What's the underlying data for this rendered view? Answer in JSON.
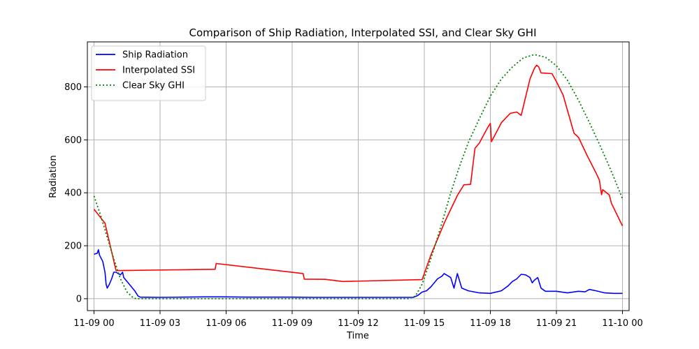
{
  "chart_data": {
    "type": "line",
    "title": "Comparison of Ship Radiation, Interpolated SSI, and Clear Sky GHI",
    "xlabel": "Time",
    "ylabel": "Radiation",
    "xlim_hours": [
      -0.3,
      24.3
    ],
    "ylim": [
      -45,
      970
    ],
    "x_ticks": [
      {
        "hour": 0,
        "label": "11-09 00"
      },
      {
        "hour": 3,
        "label": "11-09 03"
      },
      {
        "hour": 6,
        "label": "11-09 06"
      },
      {
        "hour": 9,
        "label": "11-09 09"
      },
      {
        "hour": 12,
        "label": "11-09 12"
      },
      {
        "hour": 15,
        "label": "11-09 15"
      },
      {
        "hour": 18,
        "label": "11-09 18"
      },
      {
        "hour": 21,
        "label": "11-09 21"
      },
      {
        "hour": 24,
        "label": "11-10 00"
      }
    ],
    "y_ticks": [
      0,
      200,
      400,
      600,
      800
    ],
    "grid": true,
    "legend_position": "upper-left",
    "series": [
      {
        "name": "Ship Radiation",
        "color": "#0000ff",
        "style": "solid",
        "points": [
          [
            0,
            168
          ],
          [
            0.15,
            172
          ],
          [
            0.2,
            185
          ],
          [
            0.25,
            165
          ],
          [
            0.4,
            140
          ],
          [
            0.5,
            100
          ],
          [
            0.55,
            55
          ],
          [
            0.6,
            40
          ],
          [
            0.7,
            55
          ],
          [
            0.8,
            75
          ],
          [
            0.9,
            100
          ],
          [
            1.0,
            100
          ],
          [
            1.1,
            95
          ],
          [
            1.2,
            90
          ],
          [
            1.3,
            100
          ],
          [
            1.35,
            80
          ],
          [
            1.5,
            65
          ],
          [
            1.7,
            45
          ],
          [
            1.85,
            30
          ],
          [
            2.0,
            10
          ],
          [
            2.1,
            6
          ],
          [
            3.0,
            5
          ],
          [
            4.0,
            6
          ],
          [
            5.0,
            7
          ],
          [
            6.0,
            7
          ],
          [
            7.0,
            6
          ],
          [
            8.0,
            6
          ],
          [
            9.0,
            6
          ],
          [
            10.0,
            5
          ],
          [
            11.0,
            5
          ],
          [
            12.0,
            5
          ],
          [
            13.0,
            5
          ],
          [
            14.0,
            5
          ],
          [
            14.5,
            5
          ],
          [
            14.7,
            12
          ],
          [
            14.9,
            25
          ],
          [
            15.1,
            30
          ],
          [
            15.3,
            45
          ],
          [
            15.6,
            75
          ],
          [
            15.8,
            85
          ],
          [
            15.9,
            95
          ],
          [
            16.0,
            90
          ],
          [
            16.2,
            80
          ],
          [
            16.35,
            40
          ],
          [
            16.5,
            95
          ],
          [
            16.7,
            40
          ],
          [
            17.0,
            30
          ],
          [
            17.5,
            22
          ],
          [
            18.0,
            20
          ],
          [
            18.5,
            30
          ],
          [
            18.8,
            48
          ],
          [
            19.0,
            65
          ],
          [
            19.2,
            75
          ],
          [
            19.4,
            92
          ],
          [
            19.6,
            90
          ],
          [
            19.8,
            80
          ],
          [
            19.9,
            60
          ],
          [
            20.0,
            70
          ],
          [
            20.15,
            80
          ],
          [
            20.3,
            40
          ],
          [
            20.5,
            28
          ],
          [
            21.0,
            28
          ],
          [
            21.5,
            22
          ],
          [
            22.0,
            28
          ],
          [
            22.3,
            26
          ],
          [
            22.5,
            35
          ],
          [
            22.8,
            30
          ],
          [
            23.2,
            22
          ],
          [
            23.6,
            20
          ],
          [
            24.0,
            20
          ]
        ]
      },
      {
        "name": "Interpolated SSI",
        "color": "#ff0000",
        "style": "solid",
        "points": [
          [
            0,
            338
          ],
          [
            0.5,
            285
          ],
          [
            1.0,
            106
          ],
          [
            5.5,
            111
          ],
          [
            5.55,
            133
          ],
          [
            9.5,
            95
          ],
          [
            9.55,
            74
          ],
          [
            10.5,
            73
          ],
          [
            11.3,
            65
          ],
          [
            14.9,
            72
          ],
          [
            15.3,
            165
          ],
          [
            15.9,
            285
          ],
          [
            16.5,
            390
          ],
          [
            16.8,
            430
          ],
          [
            17.1,
            432
          ],
          [
            17.3,
            568
          ],
          [
            17.5,
            588
          ],
          [
            17.9,
            650
          ],
          [
            18.0,
            662
          ],
          [
            18.05,
            593
          ],
          [
            18.5,
            665
          ],
          [
            18.9,
            700
          ],
          [
            19.2,
            705
          ],
          [
            19.4,
            692
          ],
          [
            19.8,
            830
          ],
          [
            20.0,
            870
          ],
          [
            20.1,
            882
          ],
          [
            20.2,
            875
          ],
          [
            20.3,
            853
          ],
          [
            20.8,
            850
          ],
          [
            21.0,
            820
          ],
          [
            21.3,
            770
          ],
          [
            21.8,
            625
          ],
          [
            22.0,
            610
          ],
          [
            22.4,
            540
          ],
          [
            22.8,
            475
          ],
          [
            22.95,
            448
          ],
          [
            23.05,
            393
          ],
          [
            23.1,
            412
          ],
          [
            23.4,
            392
          ],
          [
            23.5,
            360
          ],
          [
            24.0,
            275
          ]
        ]
      },
      {
        "name": "Clear Sky GHI",
        "color": "#008000",
        "style": "dotted",
        "points": [
          [
            0,
            388
          ],
          [
            0.3,
            315
          ],
          [
            0.6,
            232
          ],
          [
            0.9,
            150
          ],
          [
            1.2,
            75
          ],
          [
            1.5,
            25
          ],
          [
            1.8,
            2
          ],
          [
            2.0,
            0
          ],
          [
            14.3,
            0
          ],
          [
            14.6,
            10
          ],
          [
            14.9,
            55
          ],
          [
            15.2,
            125
          ],
          [
            15.5,
            205
          ],
          [
            15.8,
            285
          ],
          [
            16.2,
            400
          ],
          [
            16.6,
            500
          ],
          [
            17.0,
            590
          ],
          [
            17.5,
            680
          ],
          [
            18.0,
            765
          ],
          [
            18.5,
            830
          ],
          [
            19.0,
            875
          ],
          [
            19.5,
            910
          ],
          [
            20.0,
            922
          ],
          [
            20.5,
            912
          ],
          [
            21.0,
            880
          ],
          [
            21.5,
            825
          ],
          [
            22.0,
            750
          ],
          [
            22.5,
            665
          ],
          [
            23.0,
            575
          ],
          [
            23.5,
            480
          ],
          [
            24.0,
            378
          ]
        ]
      }
    ]
  }
}
